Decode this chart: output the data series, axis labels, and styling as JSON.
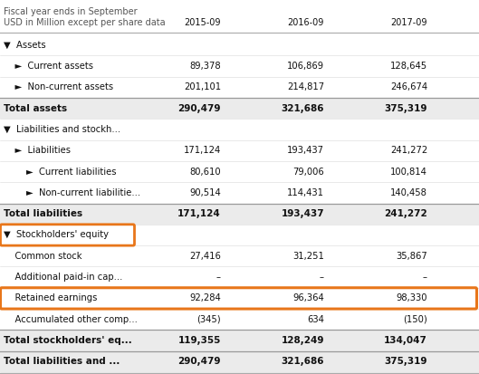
{
  "header_line1": "Fiscal year ends in September",
  "header_line2": "USD in Million except per share data",
  "col_headers": [
    "2015-09",
    "2016-09",
    "2017-09"
  ],
  "rows": [
    {
      "label": "▼  Assets",
      "values": [
        "",
        "",
        ""
      ],
      "bold": false,
      "bg": "#ffffff",
      "separator_above": false,
      "separator_below": false
    },
    {
      "label": "    ►  Current assets",
      "values": [
        "89,378",
        "106,869",
        "128,645"
      ],
      "bold": false,
      "bg": "#ffffff",
      "separator_above": false,
      "separator_below": false
    },
    {
      "label": "    ►  Non-current assets",
      "values": [
        "201,101",
        "214,817",
        "246,674"
      ],
      "bold": false,
      "bg": "#ffffff",
      "separator_above": false,
      "separator_below": false
    },
    {
      "label": "Total assets",
      "values": [
        "290,479",
        "321,686",
        "375,319"
      ],
      "bold": true,
      "bg": "#ebebeb",
      "separator_above": true,
      "separator_below": false
    },
    {
      "label": "▼  Liabilities and stockh...",
      "values": [
        "",
        "",
        ""
      ],
      "bold": false,
      "bg": "#ffffff",
      "separator_above": false,
      "separator_below": false
    },
    {
      "label": "    ►  Liabilities",
      "values": [
        "171,124",
        "193,437",
        "241,272"
      ],
      "bold": false,
      "bg": "#ffffff",
      "separator_above": false,
      "separator_below": false
    },
    {
      "label": "        ►  Current liabilities",
      "values": [
        "80,610",
        "79,006",
        "100,814"
      ],
      "bold": false,
      "bg": "#ffffff",
      "separator_above": false,
      "separator_below": false
    },
    {
      "label": "        ►  Non-current liabilitie...",
      "values": [
        "90,514",
        "114,431",
        "140,458"
      ],
      "bold": false,
      "bg": "#ffffff",
      "separator_above": false,
      "separator_below": false
    },
    {
      "label": "Total liabilities",
      "values": [
        "171,124",
        "193,437",
        "241,272"
      ],
      "bold": true,
      "bg": "#ebebeb",
      "separator_above": true,
      "separator_below": false
    },
    {
      "label": "▼  Stockholders' equity",
      "values": [
        "",
        "",
        ""
      ],
      "bold": false,
      "bg": "#ffffff",
      "separator_above": false,
      "separator_below": false,
      "orange_label_box": true
    },
    {
      "label": "    Common stock",
      "values": [
        "27,416",
        "31,251",
        "35,867"
      ],
      "bold": false,
      "bg": "#ffffff",
      "separator_above": false,
      "separator_below": false
    },
    {
      "label": "    Additional paid-in cap...",
      "values": [
        "–",
        "–",
        "–"
      ],
      "bold": false,
      "bg": "#ffffff",
      "separator_above": false,
      "separator_below": false
    },
    {
      "label": "    Retained earnings",
      "values": [
        "92,284",
        "96,364",
        "98,330"
      ],
      "bold": false,
      "bg": "#ffffff",
      "separator_above": false,
      "separator_below": false,
      "orange_full_box": true
    },
    {
      "label": "    Accumulated other comp...",
      "values": [
        "(345)",
        "634",
        "(150)"
      ],
      "bold": false,
      "bg": "#ffffff",
      "separator_above": false,
      "separator_below": false
    },
    {
      "label": "Total stockholders' eq...",
      "values": [
        "119,355",
        "128,249",
        "134,047"
      ],
      "bold": true,
      "bg": "#ebebeb",
      "separator_above": true,
      "separator_below": false
    },
    {
      "label": "Total liabilities and ...",
      "values": [
        "290,479",
        "321,686",
        "375,319"
      ],
      "bold": true,
      "bg": "#ebebeb",
      "separator_above": true,
      "separator_below": false
    }
  ],
  "orange_color": "#E8761A",
  "fig_bg": "#ffffff",
  "header_text_color": "#555555",
  "body_text_color": "#111111"
}
